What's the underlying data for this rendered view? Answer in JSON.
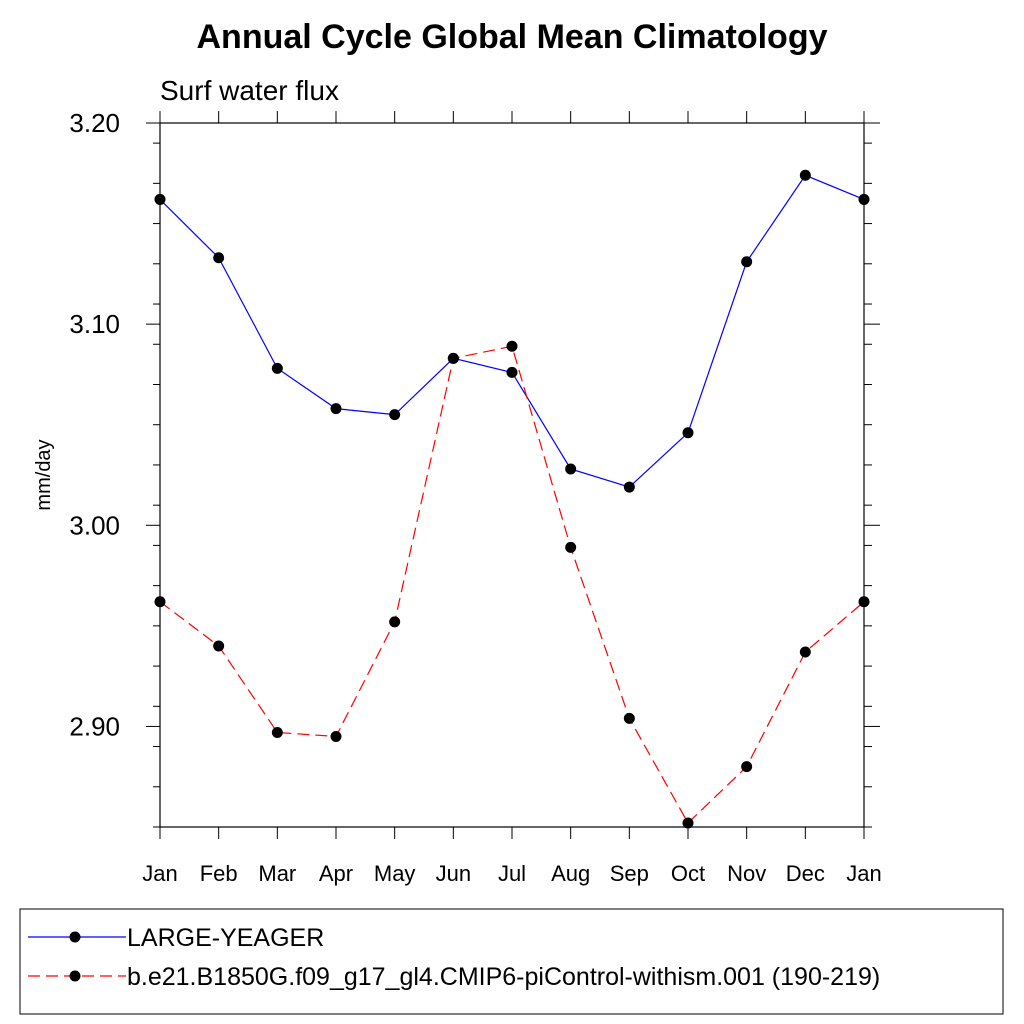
{
  "chart_data": {
    "type": "line",
    "title": "Annual Cycle Global Mean Climatology",
    "subtitle": "Surf water flux",
    "xlabel": "",
    "ylabel": "mm/day",
    "categories": [
      "Jan",
      "Feb",
      "Mar",
      "Apr",
      "May",
      "Jun",
      "Jul",
      "Aug",
      "Sep",
      "Oct",
      "Nov",
      "Dec",
      "Jan"
    ],
    "ylim": [
      2.85,
      3.2
    ],
    "yticks": [
      2.9,
      3.0,
      3.1,
      3.2
    ],
    "ytick_labels": [
      "2.90",
      "3.00",
      "3.10",
      "3.20"
    ],
    "grid": false,
    "legend_position": "bottom",
    "series": [
      {
        "name": "LARGE-YEAGER",
        "color": "#0000ff",
        "line_style": "solid",
        "marker": "filled-circle",
        "values": [
          3.162,
          3.133,
          3.078,
          3.058,
          3.055,
          3.083,
          3.076,
          3.028,
          3.019,
          3.046,
          3.131,
          3.174,
          3.162
        ]
      },
      {
        "name": "b.e21.B1850G.f09_g17_gl4.CMIP6-piControl-withism.001 (190-219)",
        "color": "#ff0000",
        "line_style": "dashed",
        "marker": "filled-circle",
        "values": [
          2.962,
          2.94,
          2.897,
          2.895,
          2.952,
          3.083,
          3.089,
          2.989,
          2.904,
          2.852,
          2.88,
          2.937,
          2.962
        ]
      }
    ]
  }
}
